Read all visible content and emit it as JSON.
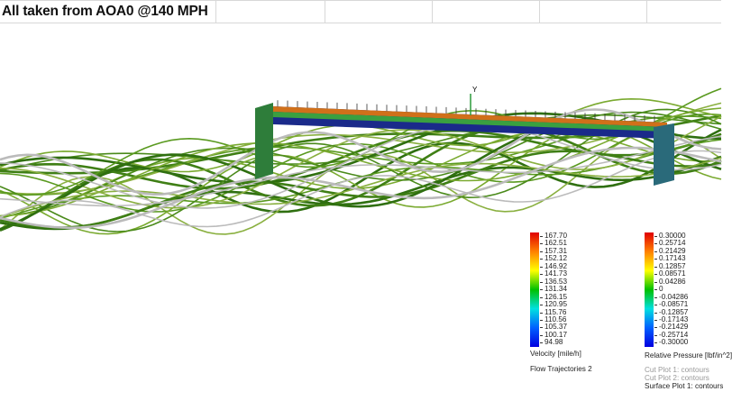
{
  "title": "All taken from AOA0 @140 MPH",
  "axis_label": "Y",
  "velocity_legend": {
    "values": [
      "167.70",
      "162.51",
      "157.31",
      "152.12",
      "146.92",
      "141.73",
      "136.53",
      "131.34",
      "126.15",
      "120.95",
      "115.76",
      "110.56",
      "105.37",
      "100.17",
      "94.98"
    ],
    "label": "Velocity [mile/h]"
  },
  "pressure_legend": {
    "values": [
      "0.30000",
      "0.25714",
      "0.21429",
      "0.17143",
      "0.12857",
      "0.08571",
      "0.04286",
      "0",
      "-0.04286",
      "-0.08571",
      "-0.12857",
      "-0.17143",
      "-0.21429",
      "-0.25714",
      "-0.30000"
    ],
    "label": "Relative Pressure [lbf/in^2]"
  },
  "flow_label": "Flow Trajectories 2",
  "plots": [
    "Cut Plot 1: contours",
    "Cut Plot 2: contours",
    "Surface Plot 1: contours"
  ],
  "colors": {
    "wing": "#2e7d3a",
    "streamline": "#4a8a1a",
    "scale_top": "#e00000",
    "scale_bottom": "#0000e0"
  }
}
